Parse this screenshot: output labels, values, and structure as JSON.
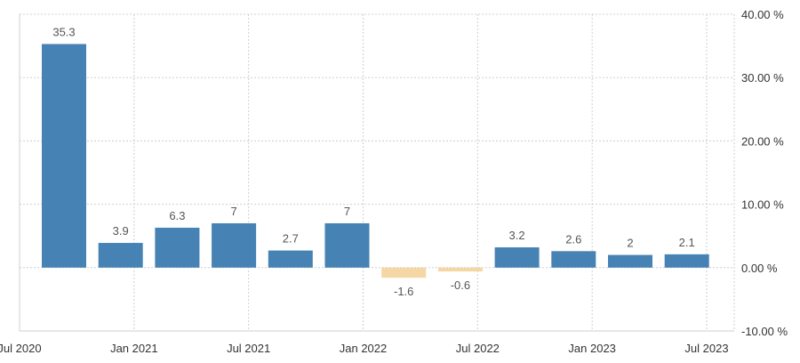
{
  "chart_data": {
    "type": "bar",
    "categories": [
      "Sep 2020",
      "Dec 2020",
      "Mar 2021",
      "Jun 2021",
      "Sep 2021",
      "Dec 2021",
      "Mar 2022",
      "Jun 2022",
      "Sep 2022",
      "Dec 2022",
      "Mar 2023",
      "Jun 2023"
    ],
    "values": [
      35.3,
      3.9,
      6.3,
      7,
      2.7,
      7,
      -1.6,
      -0.6,
      3.2,
      2.6,
      2,
      2.1
    ],
    "data_labels": [
      "35.3",
      "3.9",
      "6.3",
      "7",
      "2.7",
      "7",
      "-1.6",
      "-0.6",
      "3.2",
      "2.6",
      "2",
      "2.1"
    ],
    "ylim": [
      -10,
      40
    ],
    "y_ticks": [
      {
        "value": 40,
        "label": "40.00 %"
      },
      {
        "value": 30,
        "label": "30.00 %"
      },
      {
        "value": 20,
        "label": "20.00 %"
      },
      {
        "value": 10,
        "label": "10.00 %"
      },
      {
        "value": 0,
        "label": "0.00 %"
      },
      {
        "value": -10,
        "label": "-10.00 %"
      }
    ],
    "x_ticks": [
      {
        "date": "2020-07",
        "label": "Jul 2020"
      },
      {
        "date": "2021-01",
        "label": "Jan 2021"
      },
      {
        "date": "2021-07",
        "label": "Jul 2021"
      },
      {
        "date": "2022-01",
        "label": "Jan 2022"
      },
      {
        "date": "2022-07",
        "label": "Jul 2022"
      },
      {
        "date": "2023-01",
        "label": "Jan 2023"
      },
      {
        "date": "2023-07",
        "label": "Jul 2023"
      }
    ],
    "grid": true,
    "y_axis_position": "right",
    "colors": {
      "positive": "#4682b4",
      "negative": "#f5d7a6"
    }
  }
}
